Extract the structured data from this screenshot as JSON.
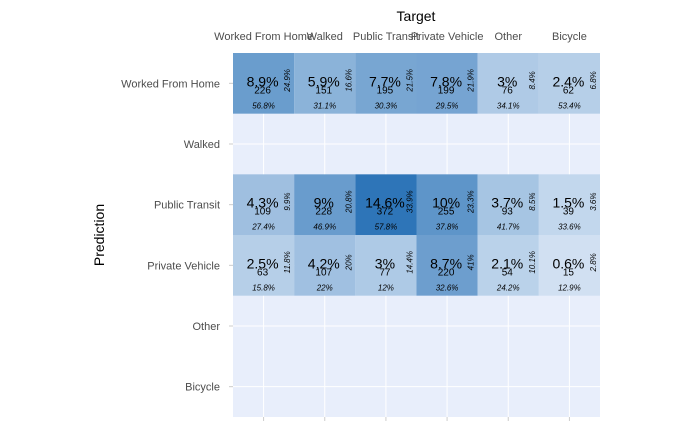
{
  "chart_data": {
    "type": "heatmap",
    "x_title": "Target",
    "y_title": "Prediction",
    "x_categories": [
      "Worked From Home",
      "Walked",
      "Public Transit",
      "Private Vehicle",
      "Other",
      "Bicycle"
    ],
    "y_categories": [
      "Worked From Home",
      "Walked",
      "Public Transit",
      "Private Vehicle",
      "Other",
      "Bicycle"
    ],
    "cells": [
      {
        "pred": "Worked From Home",
        "target": "Worked From Home",
        "pct": "8.9%",
        "count": 226,
        "col_pct": "56.8%",
        "row_pct": "24.9%"
      },
      {
        "pred": "Worked From Home",
        "target": "Walked",
        "pct": "5.9%",
        "count": 151,
        "col_pct": "31.1%",
        "row_pct": "16.6%"
      },
      {
        "pred": "Worked From Home",
        "target": "Public Transit",
        "pct": "7.7%",
        "count": 195,
        "col_pct": "30.3%",
        "row_pct": "21.5%"
      },
      {
        "pred": "Worked From Home",
        "target": "Private Vehicle",
        "pct": "7.8%",
        "count": 199,
        "col_pct": "29.5%",
        "row_pct": "21.9%"
      },
      {
        "pred": "Worked From Home",
        "target": "Other",
        "pct": "3%",
        "count": 76,
        "col_pct": "34.1%",
        "row_pct": "8.4%"
      },
      {
        "pred": "Worked From Home",
        "target": "Bicycle",
        "pct": "2.4%",
        "count": 62,
        "col_pct": "53.4%",
        "row_pct": "6.8%"
      },
      {
        "pred": "Public Transit",
        "target": "Worked From Home",
        "pct": "4.3%",
        "count": 109,
        "col_pct": "27.4%",
        "row_pct": "9.9%"
      },
      {
        "pred": "Public Transit",
        "target": "Walked",
        "pct": "9%",
        "count": 228,
        "col_pct": "46.9%",
        "row_pct": "20.8%"
      },
      {
        "pred": "Public Transit",
        "target": "Public Transit",
        "pct": "14.6%",
        "count": 372,
        "col_pct": "57.8%",
        "row_pct": "33.9%"
      },
      {
        "pred": "Public Transit",
        "target": "Private Vehicle",
        "pct": "10%",
        "count": 255,
        "col_pct": "37.8%",
        "row_pct": "23.3%"
      },
      {
        "pred": "Public Transit",
        "target": "Other",
        "pct": "3.7%",
        "count": 93,
        "col_pct": "41.7%",
        "row_pct": "8.5%"
      },
      {
        "pred": "Public Transit",
        "target": "Bicycle",
        "pct": "1.5%",
        "count": 39,
        "col_pct": "33.6%",
        "row_pct": "3.6%"
      },
      {
        "pred": "Private Vehicle",
        "target": "Worked From Home",
        "pct": "2.5%",
        "count": 63,
        "col_pct": "15.8%",
        "row_pct": "11.8%"
      },
      {
        "pred": "Private Vehicle",
        "target": "Walked",
        "pct": "4.2%",
        "count": 107,
        "col_pct": "22%",
        "row_pct": "20%"
      },
      {
        "pred": "Private Vehicle",
        "target": "Public Transit",
        "pct": "3%",
        "count": 77,
        "col_pct": "12%",
        "row_pct": "14.4%"
      },
      {
        "pred": "Private Vehicle",
        "target": "Private Vehicle",
        "pct": "8.7%",
        "count": 220,
        "col_pct": "32.6%",
        "row_pct": "41%"
      },
      {
        "pred": "Private Vehicle",
        "target": "Other",
        "pct": "2.1%",
        "count": 54,
        "col_pct": "24.2%",
        "row_pct": "10.1%"
      },
      {
        "pred": "Private Vehicle",
        "target": "Bicycle",
        "pct": "0.6%",
        "count": 15,
        "col_pct": "12.9%",
        "row_pct": "2.8%"
      }
    ],
    "colors": {
      "panel_bg": "#e8eefb",
      "grid": "#ffffff",
      "tile_low": "#dce8f6",
      "tile_high": "#2e75b8"
    }
  }
}
